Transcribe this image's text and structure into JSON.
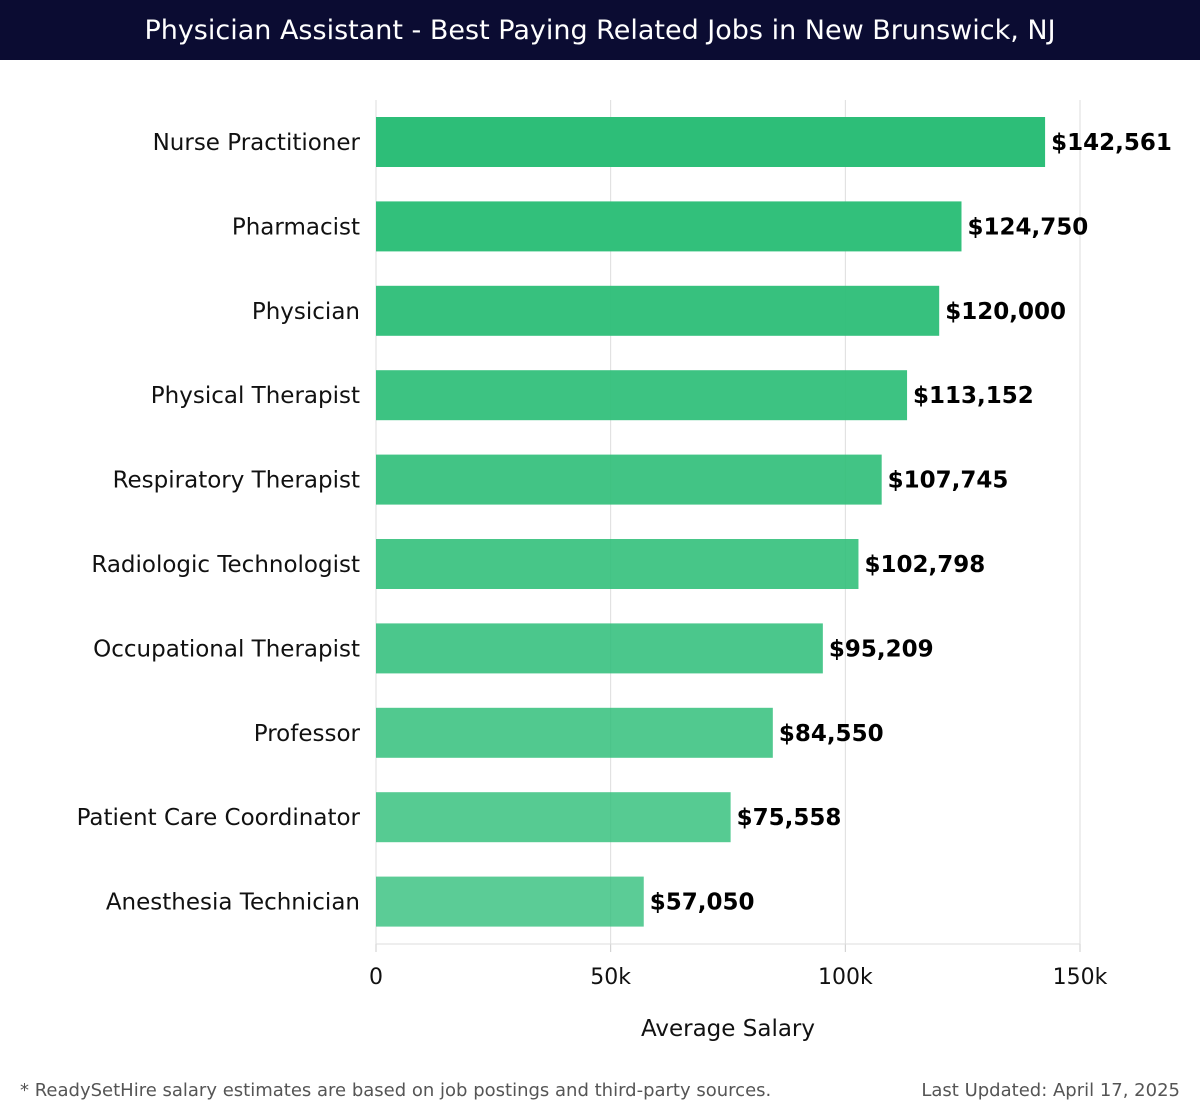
{
  "header": {
    "title": "Physician Assistant - Best Paying Related Jobs in New Brunswick, NJ"
  },
  "chart_data": {
    "type": "bar",
    "orientation": "horizontal",
    "categories": [
      "Nurse Practitioner",
      "Pharmacist",
      "Physician",
      "Physical Therapist",
      "Respiratory Therapist",
      "Radiologic Technologist",
      "Occupational Therapist",
      "Professor",
      "Patient Care Coordinator",
      "Anesthesia Technician"
    ],
    "values": [
      142561,
      124750,
      120000,
      113152,
      107745,
      102798,
      95209,
      84550,
      75558,
      57050
    ],
    "value_labels": [
      "$142,561",
      "$124,750",
      "$120,000",
      "$113,152",
      "$107,745",
      "$102,798",
      "$95,209",
      "$84,550",
      "$75,558",
      "$57,050"
    ],
    "xlabel": "Average Salary",
    "ylabel": "",
    "xlim": [
      0,
      150000
    ],
    "xticks": [
      0,
      50000,
      100000,
      150000
    ],
    "xtick_labels": [
      "0",
      "50k",
      "100k",
      "150k"
    ],
    "grid": true,
    "bar_color": "#2dbe78"
  },
  "footer": {
    "note": "* ReadySetHire salary estimates are based on job postings and third-party sources.",
    "updated": "Last Updated: April 17, 2025"
  }
}
